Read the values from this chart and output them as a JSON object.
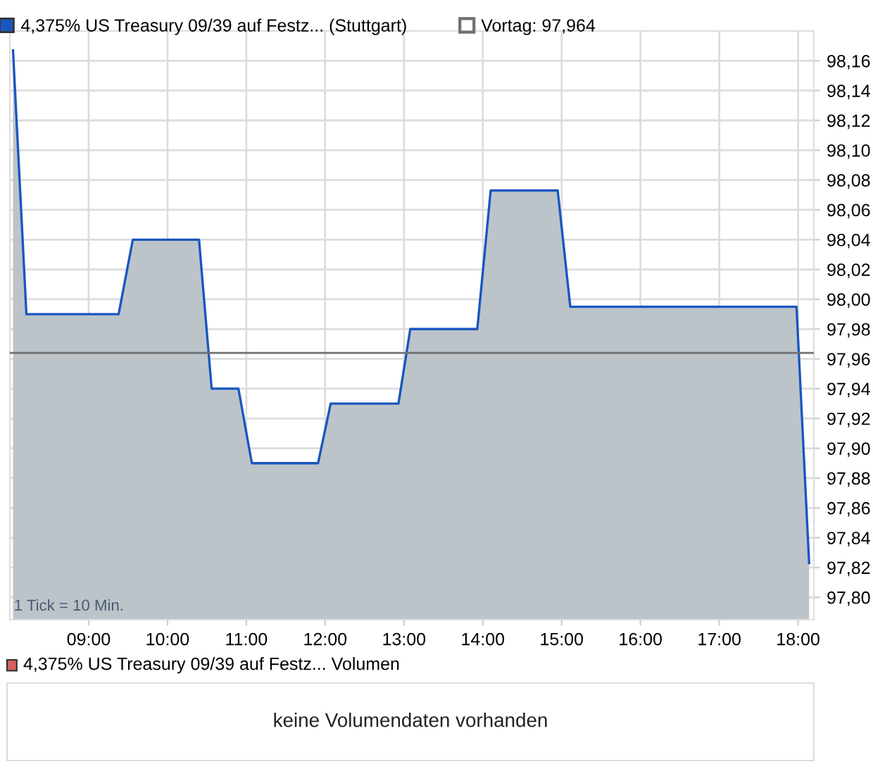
{
  "chart_data": [
    {
      "type": "area",
      "series": [
        {
          "name": "4,375% US Treasury 09/39 auf Festz... (Stuttgart)",
          "color": "#1a56c0",
          "x": [
            8.04,
            8.21,
            9.38,
            9.56,
            10.4,
            10.56,
            10.9,
            11.07,
            11.91,
            12.07,
            12.93,
            13.08,
            13.93,
            14.1,
            14.95,
            15.11,
            17.98,
            18.14
          ],
          "values": [
            98.167,
            97.99,
            97.99,
            98.04,
            98.04,
            97.94,
            97.94,
            97.89,
            97.89,
            97.93,
            97.93,
            97.98,
            97.98,
            98.073,
            98.073,
            97.995,
            97.995,
            97.823
          ]
        }
      ],
      "xlim": [
        8.0,
        18.2
      ],
      "ylim": [
        97.785,
        98.18
      ],
      "xticks": [
        {
          "value": 9,
          "label": "09:00"
        },
        {
          "value": 10,
          "label": "10:00"
        },
        {
          "value": 11,
          "label": "11:00"
        },
        {
          "value": 12,
          "label": "12:00"
        },
        {
          "value": 13,
          "label": "13:00"
        },
        {
          "value": 14,
          "label": "14:00"
        },
        {
          "value": 15,
          "label": "15:00"
        },
        {
          "value": 16,
          "label": "16:00"
        },
        {
          "value": 17,
          "label": "17:00"
        },
        {
          "value": 18,
          "label": "18:00"
        }
      ],
      "yticks": [
        {
          "value": 97.8,
          "label": "97,80"
        },
        {
          "value": 97.82,
          "label": "97,82"
        },
        {
          "value": 97.84,
          "label": "97,84"
        },
        {
          "value": 97.86,
          "label": "97,86"
        },
        {
          "value": 97.88,
          "label": "97,88"
        },
        {
          "value": 97.9,
          "label": "97,90"
        },
        {
          "value": 97.92,
          "label": "97,92"
        },
        {
          "value": 97.94,
          "label": "97,94"
        },
        {
          "value": 97.96,
          "label": "97,96"
        },
        {
          "value": 97.98,
          "label": "97,98"
        },
        {
          "value": 98.0,
          "label": "98,00"
        },
        {
          "value": 98.02,
          "label": "98,02"
        },
        {
          "value": 98.04,
          "label": "98,04"
        },
        {
          "value": 98.06,
          "label": "98,06"
        },
        {
          "value": 98.08,
          "label": "98,08"
        },
        {
          "value": 98.1,
          "label": "98,10"
        },
        {
          "value": 98.12,
          "label": "98,12"
        },
        {
          "value": 98.14,
          "label": "98,14"
        },
        {
          "value": 98.16,
          "label": "98,16"
        }
      ],
      "ref_lines": [
        {
          "axis": "y",
          "value": 97.964,
          "label": "Vortag: 97,964",
          "color": "#707070"
        }
      ],
      "annotations": [
        "1 Tick = 10 Min."
      ],
      "grid": true,
      "legend": "top"
    },
    {
      "type": "other",
      "title": "4,375% US Treasury 09/39 auf Festz... Volumen",
      "annotations": [
        "keine Volumendaten vorhanden"
      ]
    }
  ]
}
